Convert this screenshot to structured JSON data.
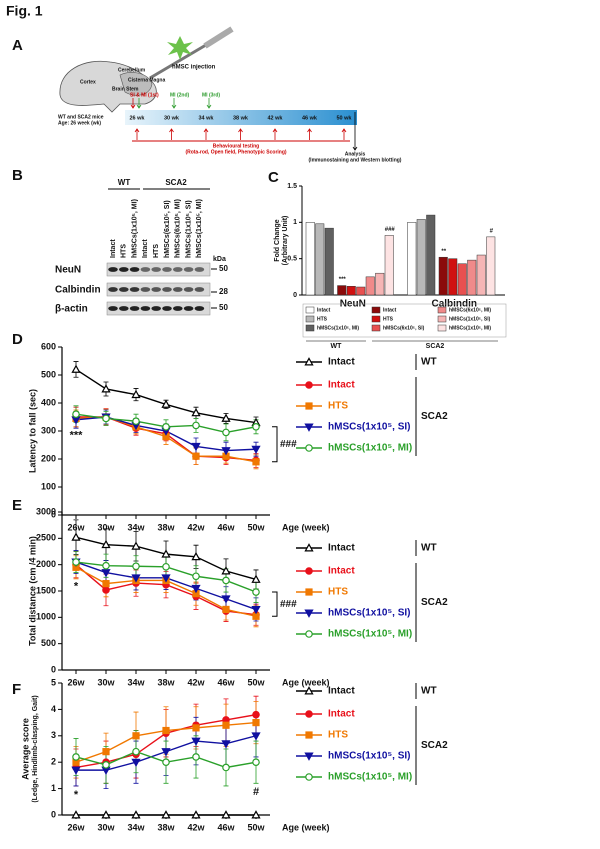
{
  "figure_title": "Fig. 1",
  "panel_labels": [
    "A",
    "B",
    "C",
    "D",
    "E",
    "F"
  ],
  "schematic": {
    "injection": "hMSC injection",
    "regions": [
      "Cerebellum",
      "Cisterna Magna",
      "Brain Stem",
      "Cortex"
    ],
    "mice": [
      "WT and SCA2 mice",
      "Age: 26 week (wk)"
    ],
    "injections": [
      "SI & MI (1st)",
      "MI (2nd)",
      "MI (3rd)"
    ],
    "weeks": [
      "26 wk",
      "30 wk",
      "34 wk",
      "38 wk",
      "42 wk",
      "46 wk",
      "50 wk"
    ],
    "behaviour": [
      "Behavioural testing",
      "(Rota-rod, Open field, Phenotypic Scoring)"
    ],
    "analysis": [
      "Analysis",
      "(Immunostaining and Western blotting)"
    ]
  },
  "blot": {
    "groups": [
      "WT",
      "SCA2"
    ],
    "lanes": [
      "Intact",
      "HTS",
      "hMSCs(1x10⁵, MI)",
      "Intact",
      "HTS",
      "hMSCs(6x10⁵, SI)",
      "hMSCs(6x10⁵, MI)",
      "hMSCs(1x10⁵, SI)",
      "hMSCs(1x10⁵, MI)"
    ],
    "rows": [
      "NeuN",
      "Calbindin",
      "β-actin"
    ],
    "unit": "kDa",
    "markers": [
      50,
      28,
      50
    ]
  },
  "chart_data": [
    {
      "type": "bar",
      "ylabel": [
        "Fold Change",
        "(Arbitrary Unit)"
      ],
      "categories": [
        "NeuN",
        "Calbindin"
      ],
      "ylim": [
        0,
        1.5
      ],
      "yticks": [
        0,
        0.5,
        1,
        1.5
      ],
      "groups": [
        {
          "name": "WT",
          "series": [
            {
              "name": "Intact",
              "color": "#ffffff",
              "values": [
                1.0,
                1.0
              ]
            },
            {
              "name": "HTS",
              "color": "#b8b8b8",
              "values": [
                0.98,
                1.04
              ]
            },
            {
              "name": "hMSCs(1x10⁵, MI)",
              "color": "#606060",
              "values": [
                0.92,
                1.1
              ]
            }
          ]
        },
        {
          "name": "SCA2",
          "series": [
            {
              "name": "Intact",
              "color": "#8b0a0a",
              "values": [
                0.13,
                0.52
              ],
              "notes": [
                "***",
                "**"
              ]
            },
            {
              "name": "HTS",
              "color": "#d01010",
              "values": [
                0.12,
                0.5
              ]
            },
            {
              "name": "hMSCs(6x10⁵, SI)",
              "color": "#e85050",
              "values": [
                0.11,
                0.43
              ]
            },
            {
              "name": "hMSCs(6x10⁵, MI)",
              "color": "#f08a8a",
              "values": [
                0.25,
                0.48
              ]
            },
            {
              "name": "hMSCs(1x10⁵, SI)",
              "color": "#f5b5b5",
              "values": [
                0.3,
                0.55
              ]
            },
            {
              "name": "hMSCs(1x10⁵, MI)",
              "color": "#fde3e3",
              "values": [
                0.82,
                0.8
              ],
              "notes": [
                "###",
                "#"
              ]
            }
          ]
        }
      ]
    },
    {
      "type": "line",
      "ylabel": [
        "Latency to fall (sec)"
      ],
      "xlabel": "Age (week)",
      "categories": [
        "26w",
        "30w",
        "34w",
        "38w",
        "42w",
        "46w",
        "50w"
      ],
      "ylim": [
        0,
        600
      ],
      "yticks": [
        0,
        100,
        200,
        300,
        400,
        500,
        600
      ],
      "significance": "###",
      "groups": [
        {
          "name": "WT",
          "series": [
            {
              "name": "Intact",
              "color": "#000000",
              "marker": "triangle",
              "filled": false,
              "values": [
                520,
                450,
                430,
                395,
                365,
                345,
                330
              ],
              "errors": [
                28,
                25,
                22,
                15,
                20,
                18,
                20
              ]
            }
          ]
        },
        {
          "name": "SCA2",
          "series": [
            {
              "name": "Intact",
              "color": "#e8101a",
              "marker": "circle",
              "filled": true,
              "values": [
                350,
                350,
                310,
                290,
                210,
                205,
                195
              ],
              "errors": [
                35,
                30,
                25,
                25,
                30,
                25,
                25
              ],
              "notes": [
                "***",
                null,
                null,
                null,
                null,
                null,
                null
              ]
            },
            {
              "name": "HTS",
              "color": "#f07800",
              "marker": "square",
              "filled": true,
              "values": [
                345,
                350,
                315,
                280,
                210,
                210,
                190
              ],
              "errors": [
                30,
                28,
                25,
                28,
                30,
                25,
                25
              ]
            },
            {
              "name": "hMSCs(1x10⁵, SI)",
              "color": "#1010a0",
              "marker": "triangle-down",
              "filled": true,
              "values": [
                340,
                350,
                320,
                300,
                245,
                230,
                235
              ],
              "errors": [
                30,
                25,
                25,
                25,
                30,
                30,
                25
              ]
            },
            {
              "name": "hMSCs(1x10⁵, MI)",
              "color": "#2aa02a",
              "marker": "circle",
              "filled": false,
              "values": [
                360,
                345,
                335,
                315,
                320,
                295,
                315
              ],
              "errors": [
                30,
                25,
                25,
                25,
                25,
                30,
                25
              ]
            }
          ]
        }
      ]
    },
    {
      "type": "line",
      "ylabel": [
        "Total distance (cm /4 min)"
      ],
      "xlabel": "Age (week)",
      "categories": [
        "26w",
        "30w",
        "34w",
        "38w",
        "42w",
        "46w",
        "50w"
      ],
      "ylim": [
        0,
        3000
      ],
      "yticks": [
        0,
        500,
        1000,
        1500,
        2000,
        2500,
        3000
      ],
      "significance": "###",
      "groups": [
        {
          "name": "WT",
          "series": [
            {
              "name": "Intact",
              "color": "#000000",
              "marker": "triangle",
              "filled": false,
              "values": [
                2520,
                2380,
                2350,
                2200,
                2150,
                1880,
                1720
              ],
              "errors": [
                330,
                300,
                280,
                250,
                220,
                230,
                180
              ]
            }
          ]
        },
        {
          "name": "SCA2",
          "series": [
            {
              "name": "Intact",
              "color": "#e8101a",
              "marker": "circle",
              "filled": true,
              "values": [
                2000,
                1520,
                1650,
                1620,
                1400,
                1120,
                1050
              ],
              "errors": [
                250,
                300,
                250,
                250,
                250,
                200,
                200
              ],
              "notes": [
                "*",
                null,
                null,
                null,
                null,
                null,
                null
              ]
            },
            {
              "name": "HTS",
              "color": "#f07800",
              "marker": "square",
              "filled": true,
              "values": [
                1950,
                1640,
                1700,
                1700,
                1450,
                1150,
                1020
              ],
              "errors": [
                220,
                250,
                230,
                230,
                220,
                200,
                200
              ]
            },
            {
              "name": "hMSCs(1x10⁵, SI)",
              "color": "#1010a0",
              "marker": "triangle-down",
              "filled": true,
              "values": [
                2050,
                1850,
                1750,
                1750,
                1550,
                1350,
                1150
              ],
              "errors": [
                220,
                230,
                230,
                220,
                220,
                230,
                220
              ]
            },
            {
              "name": "hMSCs(1x10⁵, MI)",
              "color": "#2aa02a",
              "marker": "circle",
              "filled": false,
              "values": [
                2050,
                1980,
                1970,
                1960,
                1780,
                1700,
                1480
              ],
              "errors": [
                200,
                220,
                200,
                200,
                200,
                220,
                200
              ]
            }
          ]
        }
      ]
    },
    {
      "type": "line",
      "ylabel": [
        "Average score",
        "(Ledge, Hindlimb-clasping, Gait)"
      ],
      "xlabel": "Age (week)",
      "categories": [
        "26w",
        "30w",
        "34w",
        "38w",
        "42w",
        "46w",
        "50w"
      ],
      "ylim": [
        0,
        5
      ],
      "yticks": [
        0,
        1,
        2,
        3,
        4,
        5
      ],
      "groups": [
        {
          "name": "WT",
          "series": [
            {
              "name": "Intact",
              "color": "#000000",
              "marker": "triangle",
              "filled": false,
              "values": [
                0,
                0,
                0,
                0,
                0,
                0,
                0
              ],
              "errors": [
                0,
                0,
                0,
                0,
                0,
                0,
                0
              ]
            }
          ]
        },
        {
          "name": "SCA2",
          "series": [
            {
              "name": "Intact",
              "color": "#e8101a",
              "marker": "circle",
              "filled": true,
              "values": [
                1.8,
                2.0,
                2.3,
                3.1,
                3.4,
                3.6,
                3.8
              ],
              "errors": [
                0.7,
                0.8,
                0.9,
                0.9,
                0.8,
                0.8,
                0.7
              ],
              "notes": [
                "*",
                null,
                null,
                null,
                null,
                null,
                null
              ]
            },
            {
              "name": "HTS",
              "color": "#f07800",
              "marker": "square",
              "filled": true,
              "values": [
                2.0,
                2.4,
                3.0,
                3.2,
                3.3,
                3.4,
                3.5
              ],
              "errors": [
                0.6,
                0.7,
                0.9,
                0.9,
                0.8,
                0.8,
                0.8
              ]
            },
            {
              "name": "hMSCs(1x10⁵, SI)",
              "color": "#1010a0",
              "marker": "triangle-down",
              "filled": true,
              "values": [
                1.7,
                1.7,
                2.0,
                2.4,
                2.8,
                2.7,
                3.0
              ],
              "errors": [
                0.6,
                0.7,
                0.8,
                0.9,
                0.9,
                0.8,
                0.8
              ]
            },
            {
              "name": "hMSCs(1x10⁵, MI)",
              "color": "#2aa02a",
              "marker": "circle",
              "filled": false,
              "values": [
                2.2,
                1.9,
                2.4,
                2.0,
                2.2,
                1.8,
                2.0
              ],
              "errors": [
                0.7,
                0.7,
                0.8,
                0.8,
                0.8,
                0.7,
                0.8
              ],
              "notes": [
                null,
                null,
                null,
                null,
                null,
                null,
                "#"
              ]
            }
          ]
        }
      ]
    }
  ]
}
